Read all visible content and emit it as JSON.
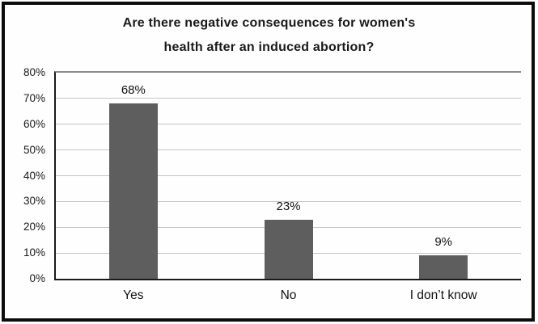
{
  "chart_data": {
    "type": "bar",
    "title": "Are there negative consequences for women's health after an induced abortion?",
    "title_lines": [
      "Are there negative consequences for women's",
      "health after an induced abortion?"
    ],
    "categories": [
      "Yes",
      "No",
      "I don’t know"
    ],
    "values": [
      68,
      23,
      9
    ],
    "value_labels": [
      "68%",
      "23%",
      "9%"
    ],
    "xlabel": "",
    "ylabel": "",
    "ylim": [
      0,
      80
    ],
    "ytick_step": 10,
    "ytick_labels": [
      "0%",
      "10%",
      "20%",
      "30%",
      "40%",
      "50%",
      "60%",
      "70%",
      "80%"
    ],
    "grid": true,
    "legend": false,
    "colors": {
      "bar": "#5e5e5e",
      "gridline": "#c4c4c4",
      "top_gridline": "#8c8c8c",
      "axis": "#1a1a1a",
      "frame_border": "#0c0c0c",
      "background": "#ffffff",
      "text": "#1a1a1a"
    }
  }
}
